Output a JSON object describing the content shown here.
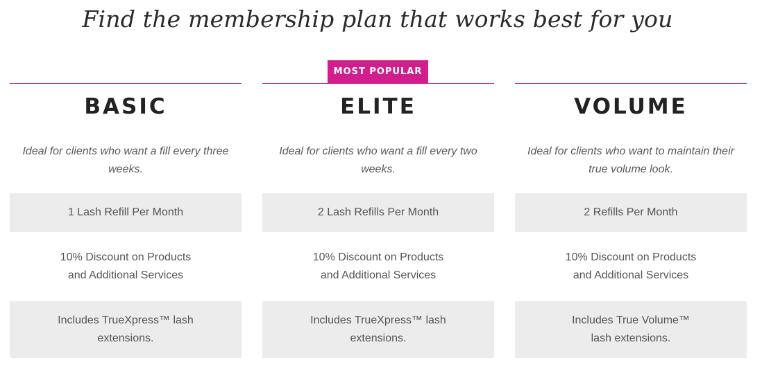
{
  "title": "Find the membership plan that works best for you",
  "colors": {
    "accent": "#d01f8c",
    "divider": "#c0307f",
    "shaded_row": "#ececec",
    "heading": "#222222",
    "text": "#555555"
  },
  "plans": [
    {
      "name": "BASIC",
      "badge": "",
      "description": "Ideal for clients who want a fill every three weeks.",
      "features": [
        "1 Lash Refill Per Month",
        "10% Discount on Products\nand Additional Services",
        "Includes TrueXpress™ lash\nextensions."
      ]
    },
    {
      "name": "ELITE",
      "badge": "MOST POPULAR",
      "description": "Ideal for clients who want a fill every two weeks.",
      "features": [
        "2 Lash Refills Per Month",
        "10% Discount on Products\nand Additional Services",
        "Includes TrueXpress™ lash\nextensions."
      ]
    },
    {
      "name": "VOLUME",
      "badge": "",
      "description": "Ideal for clients who want to maintain their true volume look.",
      "features": [
        "2 Refills Per Month",
        "10% Discount on Products\nand Additional Services",
        "Includes True Volume™\nlash extensions."
      ]
    }
  ]
}
